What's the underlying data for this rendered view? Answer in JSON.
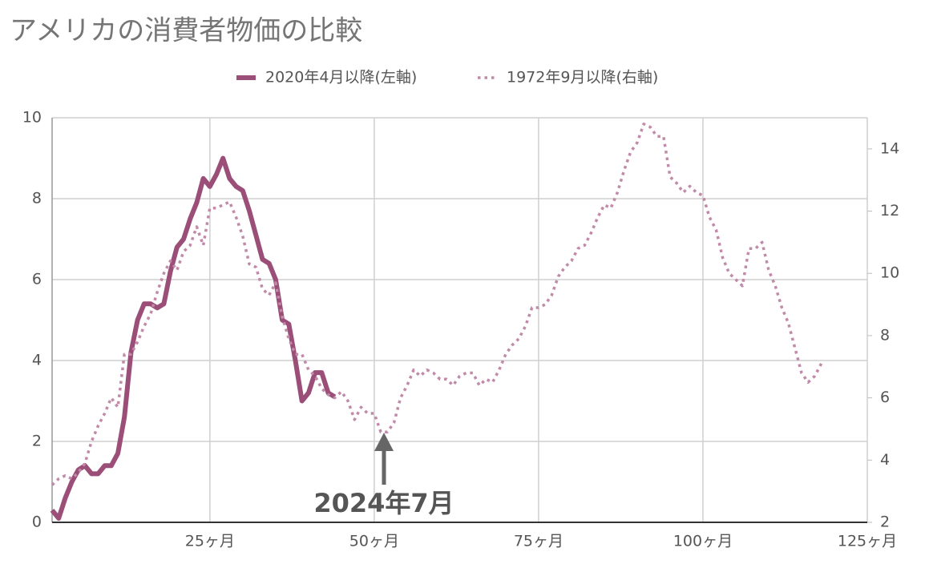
{
  "chart_data": {
    "type": "line",
    "title": "アメリカの消費者物価の比較",
    "annotation": "2024年7月",
    "x": [
      1,
      2,
      3,
      4,
      5,
      6,
      7,
      8,
      9,
      10,
      11,
      12,
      13,
      14,
      15,
      16,
      17,
      18,
      19,
      20,
      21,
      22,
      23,
      24,
      25,
      26,
      27,
      28,
      29,
      30,
      31,
      32,
      33,
      34,
      35,
      36,
      37,
      38,
      39,
      40,
      41,
      42,
      43,
      44,
      45,
      46,
      47,
      48,
      49,
      50,
      51,
      52,
      53,
      54,
      55,
      56,
      57,
      58,
      59,
      60,
      61,
      62,
      63,
      64,
      65,
      66,
      67,
      68,
      69,
      70,
      71,
      72,
      73,
      74,
      75,
      76,
      77,
      78,
      79,
      80,
      81,
      82,
      83,
      84,
      85,
      86,
      87,
      88,
      89,
      90,
      91,
      92,
      93,
      94,
      95,
      96,
      97,
      98,
      99,
      100,
      101,
      102,
      103,
      104,
      105,
      106,
      107,
      108,
      109,
      110,
      111,
      112,
      113,
      114,
      115,
      116,
      117,
      118
    ],
    "xlim": [
      1,
      125
    ],
    "xticks": [
      {
        "value": 25,
        "label": "25ヶ月"
      },
      {
        "value": 50,
        "label": "50ヶ月"
      },
      {
        "value": 75,
        "label": "75ヶ月"
      },
      {
        "value": 100,
        "label": "100ヶ月"
      },
      {
        "value": 125,
        "label": "125ヶ月"
      }
    ],
    "ylim": [
      0,
      10
    ],
    "yticks": [
      0,
      2,
      4,
      6,
      8,
      10
    ],
    "y2lim": [
      2,
      15
    ],
    "y2ticks": [
      2,
      4,
      6,
      8,
      10,
      12,
      14
    ],
    "grid": true,
    "legend": "top",
    "series": [
      {
        "name": "2020年4月以降(左軸)",
        "color": "#9b4f78",
        "style": "solid",
        "values": [
          0.3,
          0.1,
          0.6,
          1.0,
          1.3,
          1.4,
          1.2,
          1.2,
          1.4,
          1.4,
          1.7,
          2.6,
          4.2,
          5.0,
          5.4,
          5.4,
          5.3,
          5.4,
          6.2,
          6.8,
          7.0,
          7.5,
          7.9,
          8.5,
          8.3,
          8.6,
          9.0,
          8.5,
          8.3,
          8.2,
          7.7,
          7.1,
          6.5,
          6.4,
          6.0,
          5.0,
          4.9,
          4.0,
          3.0,
          3.2,
          3.7,
          3.7,
          3.2,
          3.1,
          null,
          null,
          null,
          null,
          null,
          null,
          null,
          null,
          null,
          null,
          null,
          null,
          null,
          null,
          null,
          null,
          null,
          null,
          null,
          null,
          null,
          null,
          null,
          null,
          null,
          null,
          null,
          null,
          null,
          null,
          null,
          null,
          null,
          null,
          null,
          null,
          null,
          null,
          null,
          null,
          null,
          null,
          null,
          null,
          null,
          null,
          null,
          null,
          null,
          null,
          null,
          null,
          null,
          null,
          null,
          null,
          null,
          null,
          null,
          null,
          null,
          null,
          null,
          null,
          null,
          null,
          null,
          null,
          null,
          null,
          null,
          null,
          null,
          null
        ]
      },
      {
        "name": "1972年9月以降(右軸)",
        "color": "#c08aa8",
        "style": "dotted",
        "axis": "y2",
        "values": [
          3.2,
          3.4,
          3.5,
          3.4,
          3.6,
          3.9,
          4.6,
          5.1,
          5.5,
          6.0,
          5.7,
          7.4,
          7.4,
          7.8,
          8.3,
          8.7,
          9.4,
          10.0,
          10.4,
          10.1,
          10.7,
          10.9,
          11.5,
          10.9,
          12.1,
          12.1,
          12.2,
          12.3,
          11.8,
          11.2,
          10.3,
          10.2,
          9.5,
          9.3,
          9.7,
          8.6,
          7.9,
          7.4,
          7.4,
          6.9,
          6.7,
          6.3,
          6.1,
          6.0,
          6.2,
          5.9,
          5.3,
          5.7,
          5.5,
          5.5,
          4.9,
          4.9,
          5.2,
          6.0,
          6.4,
          6.9,
          6.7,
          6.9,
          6.8,
          6.6,
          6.6,
          6.4,
          6.7,
          6.8,
          6.8,
          6.4,
          6.6,
          6.5,
          6.9,
          7.4,
          7.7,
          7.9,
          8.3,
          8.9,
          8.9,
          9.0,
          9.3,
          9.9,
          10.2,
          10.4,
          10.8,
          10.9,
          11.3,
          11.8,
          12.2,
          12.1,
          12.6,
          13.3,
          13.9,
          14.2,
          14.8,
          14.7,
          14.4,
          14.4,
          13.1,
          12.9,
          12.6,
          12.8,
          12.6,
          12.5,
          11.8,
          11.4,
          10.5,
          10.0,
          9.8,
          9.6,
          10.8,
          10.8,
          11.0,
          10.1,
          9.6,
          8.9,
          8.4,
          7.6,
          6.8,
          6.5,
          6.7,
          7.1
        ]
      }
    ]
  }
}
